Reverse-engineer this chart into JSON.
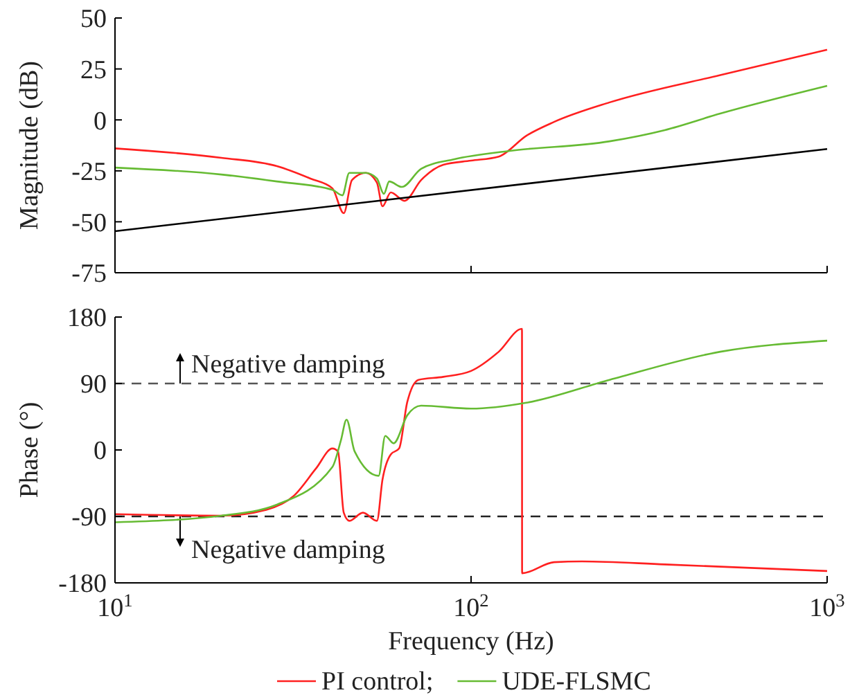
{
  "chart_data": [
    {
      "type": "line",
      "ylabel": "Magnitude (dB)",
      "log": "x",
      "xlim": [
        10,
        1000
      ],
      "ylim": [
        -75,
        50
      ],
      "xticks": [
        {
          "value": 10,
          "label": null
        },
        {
          "value": 100,
          "label": null
        },
        {
          "value": 1000,
          "label": null
        }
      ],
      "yticks": [
        -75,
        -50,
        -25,
        0,
        25,
        50
      ],
      "tick_labels": "y",
      "grid": false,
      "legend": false,
      "series": [
        {
          "color": "#ff2020",
          "x": [
            10,
            19.9,
            28.5,
            35.4,
            40.8,
            43.9,
            46.3,
            50.6,
            54.4,
            56.4,
            59.5,
            65,
            72.4,
            83.6,
            100,
            119.6,
            143.2,
            171,
            245,
            501,
            1000
          ],
          "values": [
            -14,
            -18.6,
            -22.7,
            -28.8,
            -33.6,
            -45.8,
            -29.5,
            -26,
            -30.8,
            -42.4,
            -35.6,
            -39.7,
            -29.5,
            -22,
            -20,
            -18,
            -7.7,
            -1,
            8.6,
            22,
            34.4
          ]
        },
        {
          "color": "#66bb33",
          "x": [
            10,
            19.9,
            28.5,
            40.8,
            43.5,
            45.5,
            50.6,
            54.4,
            56.9,
            58.9,
            63.9,
            72.4,
            89.8,
            128.5,
            245,
            350,
            501,
            1000
          ],
          "values": [
            -23.4,
            -26.8,
            -30.2,
            -34.3,
            -37,
            -26,
            -26,
            -28.8,
            -36.3,
            -30.2,
            -32.9,
            -24,
            -19.3,
            -15.2,
            -10.5,
            -5,
            3.1,
            16.7
          ]
        },
        {
          "color": "#000000",
          "x": [
            10,
            1000
          ],
          "values": [
            -54.6,
            -14.3
          ]
        }
      ]
    },
    {
      "type": "line",
      "ylabel": "Phase (°)",
      "xlabel": "Frequency (Hz)",
      "log": "x",
      "xlim": [
        10,
        1000
      ],
      "ylim": [
        -180,
        180
      ],
      "xticks": [
        {
          "value": 10,
          "label": "10$^{1}$"
        },
        {
          "value": 100,
          "label": "10$^{2}$"
        },
        {
          "value": 1000,
          "label": "10$^{3}$"
        }
      ],
      "yticks": [
        -180,
        -90,
        0,
        90,
        180
      ],
      "grid": false,
      "legend": "bottom",
      "ref_lines": [
        {
          "axis": "y",
          "value": 90,
          "label": "Negative damping",
          "line_style": "dashed",
          "color": "#555555"
        },
        {
          "axis": "y",
          "value": -90,
          "label": "Negative damping",
          "line_style": "dashed",
          "color": "#222222"
        }
      ],
      "series": [
        {
          "name": "PI control;",
          "color": "#ff2020",
          "x": [
            10,
            19.9,
            26.6,
            31.8,
            36.7,
            40.8,
            42.3,
            43.9,
            45.5,
            49.7,
            54.4,
            56.4,
            59.5,
            62.8,
            66.2,
            71.2,
            83.6,
            100,
            119.6,
            139,
            139.1,
            171,
            204.8,
            350,
            1000
          ],
          "values": [
            -87,
            -89,
            -81,
            -62,
            -25,
            2,
            -2,
            -85,
            -96,
            -85,
            -96,
            -40,
            -6,
            2,
            65,
            95,
            99,
            107,
            133,
            164,
            -167,
            -152,
            -151,
            -155,
            -164
          ]
        },
        {
          "name": "UDE-FLSMC",
          "color": "#66bb33",
          "x": [
            10,
            19.9,
            28.5,
            40.8,
            43.1,
            44.7,
            47.1,
            55,
            57.4,
            60.6,
            66.2,
            72.4,
            100,
            143,
            245,
            501,
            1000
          ],
          "values": [
            -98,
            -89,
            -74,
            -23,
            13,
            41,
            -2,
            -35,
            19,
            9,
            47,
            60,
            56,
            64,
            95,
            133,
            148
          ]
        }
      ]
    }
  ]
}
